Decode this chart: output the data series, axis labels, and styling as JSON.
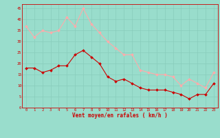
{
  "x": [
    0,
    1,
    2,
    3,
    4,
    5,
    6,
    7,
    8,
    9,
    10,
    11,
    12,
    13,
    14,
    15,
    16,
    17,
    18,
    19,
    20,
    21,
    22,
    23
  ],
  "wind_avg": [
    18,
    18,
    16,
    17,
    19,
    19,
    24,
    26,
    23,
    20,
    14,
    12,
    13,
    11,
    9,
    8,
    8,
    8,
    7,
    6,
    4,
    6,
    6,
    11
  ],
  "wind_gust": [
    37,
    32,
    35,
    34,
    35,
    41,
    37,
    45,
    38,
    34,
    30,
    27,
    24,
    24,
    17,
    16,
    15,
    15,
    14,
    10,
    13,
    11,
    9,
    16
  ],
  "avg_color": "#cc0000",
  "gust_color": "#ffaaaa",
  "background_color": "#99ddcc",
  "grid_color": "#88ccbb",
  "ylabel_ticks": [
    0,
    5,
    10,
    15,
    20,
    25,
    30,
    35,
    40,
    45
  ],
  "xlabel": "Vent moyen/en rafales ( km/h )",
  "ylim": [
    0,
    47
  ],
  "xlim": [
    -0.5,
    23.5
  ],
  "tick_fontsize": 4.0,
  "xlabel_fontsize": 5.5,
  "marker_size": 2.0,
  "line_width": 0.8
}
